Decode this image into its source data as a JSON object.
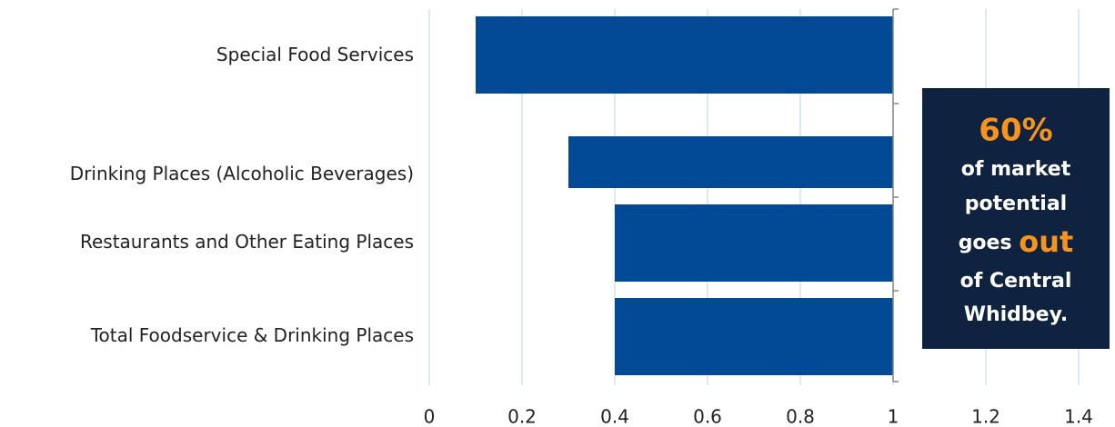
{
  "chart_data": {
    "type": "bar",
    "orientation": "horizontal",
    "base": 1,
    "categories": [
      "Special Food Services",
      "Drinking Places (Alcoholic Beverages)",
      "Restaurants and Other Eating Places",
      "Total Foodservice & Drinking Places"
    ],
    "values": [
      0.1,
      0.3,
      0.4,
      0.4
    ],
    "color": "#034a96",
    "xlim": [
      0,
      1.4
    ],
    "xticks": [
      0,
      0.2,
      0.4,
      0.6,
      0.8,
      1,
      1.2,
      1.4
    ],
    "grid": true,
    "annotation": {
      "figure": "60%",
      "line_1": "of market",
      "line_2": "potential",
      "line_3": "goes",
      "emphasis": "out",
      "line_4": "of Central",
      "line_5": "Whidbey."
    }
  }
}
